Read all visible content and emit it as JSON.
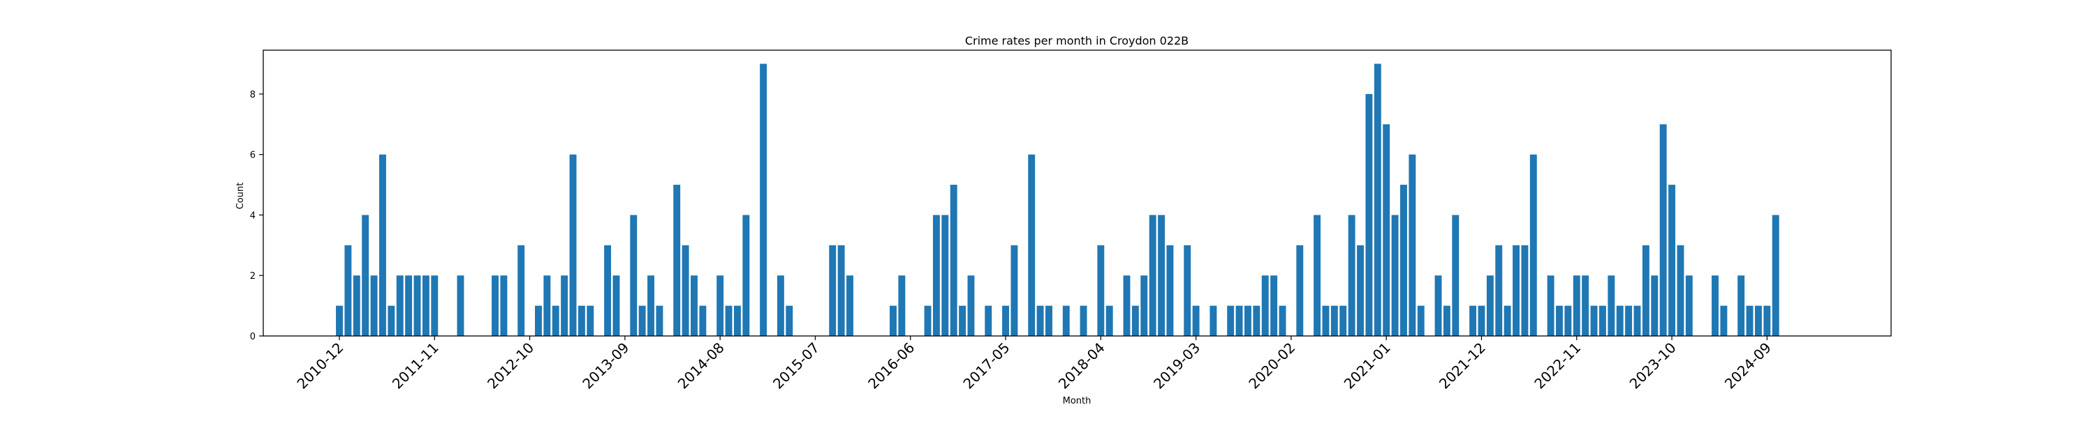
{
  "chart_data": {
    "type": "bar",
    "title": "Crime rates per month in Croydon 022B",
    "xlabel": "Month",
    "ylabel": "Count",
    "ylim": [
      0,
      9.45
    ],
    "y_ticks": [
      0,
      2,
      4,
      6,
      8
    ],
    "x_tick_labels": [
      "2010-12",
      "2011-11",
      "2012-10",
      "2013-09",
      "2014-08",
      "2015-07",
      "2016-06",
      "2017-05",
      "2018-04",
      "2019-03",
      "2020-02",
      "2021-01",
      "2021-12",
      "2022-11",
      "2023-10",
      "2024-09"
    ],
    "bar_color": "#1f77b4",
    "grid": false,
    "series": [
      {
        "x": [
          "2010-12",
          "2011-01",
          "2011-02",
          "2011-03",
          "2011-04",
          "2011-05",
          "2011-06",
          "2011-07",
          "2011-08",
          "2011-09",
          "2011-10",
          "2011-11",
          "2012-02",
          "2012-06",
          "2012-07",
          "2012-09",
          "2012-11",
          "2012-12",
          "2013-01",
          "2013-02",
          "2013-03",
          "2013-04",
          "2013-05",
          "2013-07",
          "2013-08",
          "2013-10",
          "2013-11",
          "2013-12",
          "2014-01",
          "2014-03",
          "2014-04",
          "2014-05",
          "2014-06",
          "2014-08",
          "2014-09",
          "2014-10",
          "2014-11",
          "2015-01",
          "2015-03",
          "2015-04",
          "2015-09",
          "2015-10",
          "2015-11",
          "2016-04",
          "2016-05",
          "2016-08",
          "2016-09",
          "2016-10",
          "2016-11",
          "2016-12",
          "2017-01",
          "2017-03",
          "2017-05",
          "2017-06",
          "2017-08",
          "2017-09",
          "2017-10",
          "2017-12",
          "2018-02",
          "2018-04",
          "2018-05",
          "2018-07",
          "2018-08",
          "2018-09",
          "2018-10",
          "2018-11",
          "2018-12",
          "2019-02",
          "2019-03",
          "2019-05",
          "2019-07",
          "2019-08",
          "2019-09",
          "2019-10",
          "2019-11",
          "2019-12",
          "2020-01",
          "2020-03",
          "2020-05",
          "2020-06",
          "2020-07",
          "2020-08",
          "2020-09",
          "2020-10",
          "2020-11",
          "2020-12",
          "2021-01",
          "2021-02",
          "2021-03",
          "2021-04",
          "2021-05",
          "2021-07",
          "2021-08",
          "2021-09",
          "2021-11",
          "2021-12",
          "2022-01",
          "2022-02",
          "2022-03",
          "2022-04",
          "2022-05",
          "2022-06",
          "2022-08",
          "2022-09",
          "2022-10",
          "2022-11",
          "2022-12",
          "2023-01",
          "2023-02",
          "2023-03",
          "2023-04",
          "2023-05",
          "2023-06",
          "2023-07",
          "2023-08",
          "2023-09",
          "2023-10",
          "2023-11",
          "2023-12",
          "2024-03",
          "2024-04",
          "2024-06",
          "2024-07",
          "2024-08",
          "2024-09",
          "2024-10"
        ],
        "values": [
          1,
          3,
          2,
          4,
          2,
          6,
          1,
          2,
          2,
          2,
          2,
          2,
          2,
          2,
          2,
          3,
          1,
          2,
          1,
          2,
          6,
          1,
          1,
          3,
          2,
          4,
          1,
          2,
          1,
          5,
          3,
          2,
          1,
          2,
          1,
          1,
          4,
          9,
          2,
          1,
          3,
          3,
          2,
          1,
          2,
          1,
          4,
          4,
          5,
          1,
          2,
          1,
          1,
          3,
          6,
          1,
          1,
          1,
          1,
          3,
          1,
          2,
          1,
          2,
          4,
          4,
          3,
          3,
          1,
          1,
          1,
          1,
          1,
          1,
          2,
          2,
          1,
          3,
          4,
          1,
          1,
          1,
          4,
          3,
          8,
          9,
          7,
          4,
          5,
          6,
          1,
          2,
          1,
          4,
          1,
          1,
          2,
          3,
          1,
          3,
          3,
          6,
          2,
          1,
          1,
          2,
          2,
          1,
          1,
          2,
          1,
          1,
          1,
          3,
          2,
          7,
          5,
          3,
          2,
          2,
          1,
          2,
          1,
          1,
          1,
          4
        ]
      }
    ]
  }
}
